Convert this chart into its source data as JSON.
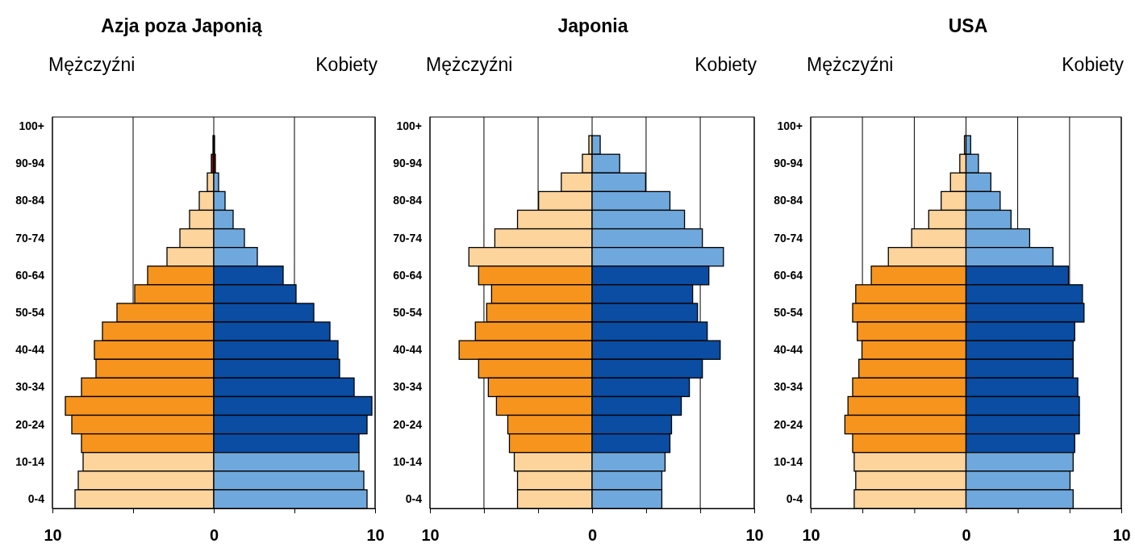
{
  "chart_data": [
    {
      "type": "bar",
      "orientation": "horizontal",
      "stacked": true,
      "title": "Azja poza Japonią",
      "annotations": [
        "Mężczyźni",
        "Kobiety"
      ],
      "categories": [
        "100+",
        null,
        "90-94",
        null,
        "80-84",
        null,
        "70-74",
        null,
        "60-64",
        null,
        "50-54",
        null,
        "40-44",
        null,
        "30-34",
        null,
        "20-24",
        null,
        "10-14",
        null,
        "0-4"
      ],
      "series": [
        {
          "colors": [
            "#fcd49c",
            "#7b1010",
            "#7b1010",
            "#fcd49c",
            "#fcd49c",
            "#fcd49c",
            "#fcd49c",
            "#fcd49c",
            "#f7941d",
            "#f7941d",
            "#f7941d",
            "#f7941d",
            "#f7941d",
            "#f7941d",
            "#f7941d",
            "#f7941d",
            "#f7941d",
            "#f7941d",
            "#fcd49c",
            "#fcd49c",
            "#fcd49c"
          ],
          "values": [
            0,
            -0.05,
            -0.15,
            -0.4,
            -0.9,
            -1.5,
            -2.1,
            -2.9,
            -4.1,
            -4.9,
            -6.0,
            -6.9,
            -7.4,
            -7.3,
            -8.2,
            -9.2,
            -8.8,
            -8.2,
            -8.1,
            -8.4,
            -8.6
          ]
        },
        {
          "colors": [
            "#6fa8dc",
            "#7b1010",
            "#7b1010",
            "#6fa8dc",
            "#6fa8dc",
            "#6fa8dc",
            "#6fa8dc",
            "#6fa8dc",
            "#0a4da2",
            "#0a4da2",
            "#0a4da2",
            "#0a4da2",
            "#0a4da2",
            "#0a4da2",
            "#0a4da2",
            "#0a4da2",
            "#0a4da2",
            "#0a4da2",
            "#6fa8dc",
            "#6fa8dc",
            "#6fa8dc"
          ],
          "values": [
            0,
            0.05,
            0.1,
            0.3,
            0.7,
            1.2,
            1.9,
            2.7,
            4.3,
            5.1,
            6.2,
            7.2,
            7.7,
            7.8,
            8.7,
            9.8,
            9.5,
            9.0,
            9.0,
            9.3,
            9.5
          ]
        }
      ],
      "xlim": [
        -10,
        10
      ],
      "xticks": [
        {
          "value": -10,
          "label": "10"
        },
        {
          "value": -5,
          "label": null
        },
        {
          "value": 0,
          "label": "0"
        },
        {
          "value": 5,
          "label": null
        },
        {
          "value": 10,
          "label": "10"
        }
      ],
      "grid": "x"
    },
    {
      "type": "bar",
      "orientation": "horizontal",
      "stacked": true,
      "title": "Japonia",
      "annotations": [
        "Mężczyźni",
        "Kobiety"
      ],
      "categories": [
        "100+",
        null,
        "90-94",
        null,
        "80-84",
        null,
        "70-74",
        null,
        "60-64",
        null,
        "50-54",
        null,
        "40-44",
        null,
        "30-34",
        null,
        "20-24",
        null,
        "10-14",
        null,
        "0-4"
      ],
      "series": [
        {
          "colors": [
            "#fcd49c",
            "#fcd49c",
            "#fcd49c",
            "#fcd49c",
            "#fcd49c",
            "#fcd49c",
            "#fcd49c",
            "#fcd49c",
            "#f7941d",
            "#f7941d",
            "#f7941d",
            "#f7941d",
            "#f7941d",
            "#f7941d",
            "#f7941d",
            "#f7941d",
            "#f7941d",
            "#f7941d",
            "#fcd49c",
            "#fcd49c",
            "#fcd49c"
          ],
          "values": [
            0,
            -0.2,
            -0.6,
            -1.9,
            -3.3,
            -4.6,
            -6.0,
            -7.6,
            -7.0,
            -6.2,
            -6.5,
            -7.2,
            -8.2,
            -7.0,
            -6.4,
            -5.9,
            -5.2,
            -5.1,
            -4.8,
            -4.6,
            -4.6
          ]
        },
        {
          "colors": [
            "#6fa8dc",
            "#6fa8dc",
            "#6fa8dc",
            "#6fa8dc",
            "#6fa8dc",
            "#6fa8dc",
            "#6fa8dc",
            "#6fa8dc",
            "#0a4da2",
            "#0a4da2",
            "#0a4da2",
            "#0a4da2",
            "#0a4da2",
            "#0a4da2",
            "#0a4da2",
            "#0a4da2",
            "#0a4da2",
            "#0a4da2",
            "#6fa8dc",
            "#6fa8dc",
            "#6fa8dc"
          ],
          "values": [
            0,
            0.5,
            1.7,
            3.3,
            4.8,
            5.7,
            6.8,
            8.1,
            7.2,
            6.2,
            6.5,
            7.1,
            7.9,
            6.8,
            6.0,
            5.5,
            4.9,
            4.8,
            4.5,
            4.3,
            4.3
          ]
        }
      ],
      "xlim": [
        -10,
        10
      ],
      "xticks": [
        {
          "value": -10,
          "label": "10"
        },
        {
          "value": -6.67,
          "label": null
        },
        {
          "value": -3.33,
          "label": null
        },
        {
          "value": 0,
          "label": "0"
        },
        {
          "value": 3.33,
          "label": null
        },
        {
          "value": 6.67,
          "label": null
        },
        {
          "value": 10,
          "label": "10"
        }
      ],
      "grid": "x"
    },
    {
      "type": "bar",
      "orientation": "horizontal",
      "stacked": true,
      "title": "USA",
      "annotations": [
        "Mężczyźni",
        "Kobiety"
      ],
      "categories": [
        "100+",
        null,
        "90-94",
        null,
        "80-84",
        null,
        "70-74",
        null,
        "60-64",
        null,
        "50-54",
        null,
        "40-44",
        null,
        "30-34",
        null,
        "20-24",
        null,
        "10-14",
        null,
        "0-4"
      ],
      "series": [
        {
          "colors": [
            "#fcd49c",
            "#fcd49c",
            "#fcd49c",
            "#fcd49c",
            "#fcd49c",
            "#fcd49c",
            "#fcd49c",
            "#fcd49c",
            "#f7941d",
            "#f7941d",
            "#f7941d",
            "#f7941d",
            "#f7941d",
            "#f7941d",
            "#f7941d",
            "#f7941d",
            "#f7941d",
            "#f7941d",
            "#fcd49c",
            "#fcd49c",
            "#fcd49c"
          ],
          "values": [
            0,
            -0.1,
            -0.4,
            -1.0,
            -1.6,
            -2.4,
            -3.5,
            -5.0,
            -6.1,
            -7.1,
            -7.3,
            -7.0,
            -6.7,
            -6.9,
            -7.3,
            -7.6,
            -7.8,
            -7.3,
            -7.2,
            -7.1,
            -7.2
          ]
        },
        {
          "colors": [
            "#6fa8dc",
            "#6fa8dc",
            "#6fa8dc",
            "#6fa8dc",
            "#6fa8dc",
            "#6fa8dc",
            "#6fa8dc",
            "#6fa8dc",
            "#0a4da2",
            "#0a4da2",
            "#0a4da2",
            "#0a4da2",
            "#0a4da2",
            "#0a4da2",
            "#0a4da2",
            "#0a4da2",
            "#0a4da2",
            "#0a4da2",
            "#6fa8dc",
            "#6fa8dc",
            "#6fa8dc"
          ],
          "values": [
            0,
            0.3,
            0.8,
            1.6,
            2.2,
            2.9,
            4.1,
            5.6,
            6.6,
            7.5,
            7.6,
            7.0,
            6.9,
            6.9,
            7.2,
            7.3,
            7.3,
            7.0,
            6.9,
            6.7,
            6.9
          ]
        }
      ],
      "xlim": [
        -10,
        10
      ],
      "xticks": [
        {
          "value": -10,
          "label": "10"
        },
        {
          "value": -6.67,
          "label": null
        },
        {
          "value": -3.33,
          "label": null
        },
        {
          "value": 0,
          "label": "0"
        },
        {
          "value": 3.33,
          "label": null
        },
        {
          "value": 6.67,
          "label": null
        },
        {
          "value": 10,
          "label": "10"
        }
      ],
      "grid": "x"
    }
  ]
}
